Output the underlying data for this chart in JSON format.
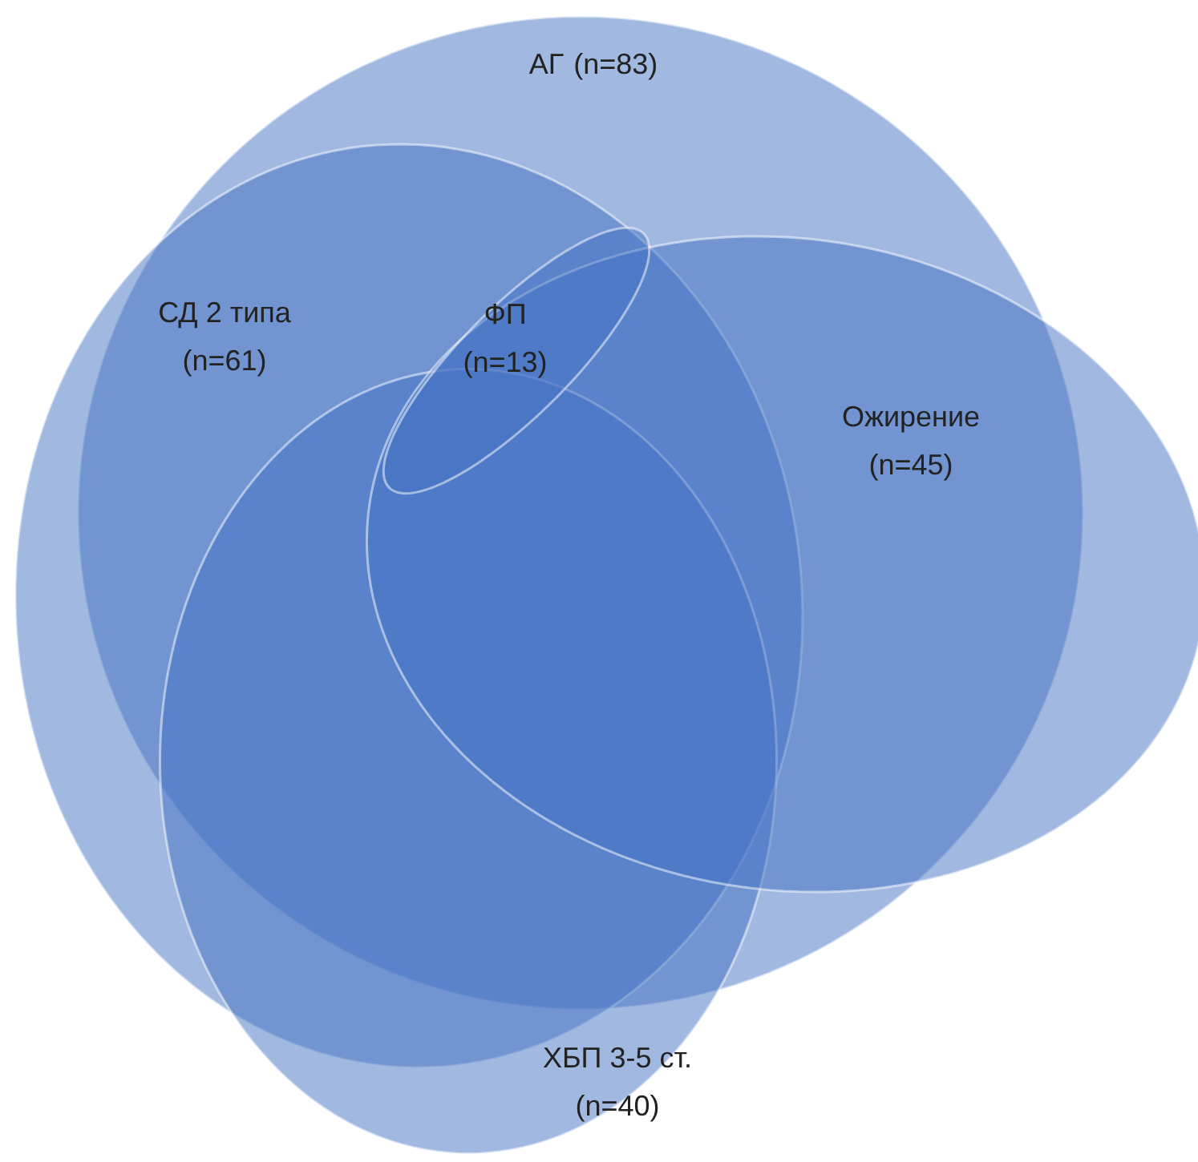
{
  "chart_data": {
    "type": "other",
    "categories": [
      "АГ",
      "СД 2 типа",
      "ФП",
      "Ожирение",
      "ХБП 3-5 ст."
    ],
    "values": [
      83,
      61,
      13,
      45,
      40
    ],
    "value_labels": [
      "(n=83)",
      "(n=61)",
      "(n=13)",
      "(n=45)",
      "(n=40)"
    ],
    "colors": [
      "#4472c4",
      "#4472c4",
      "#4472c4",
      "#4472c4",
      "#4472c4"
    ]
  }
}
